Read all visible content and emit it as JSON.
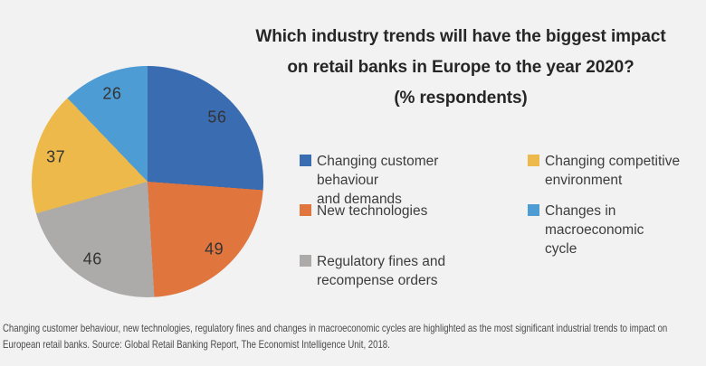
{
  "background_color": "#f2f2f2",
  "title": {
    "line1": "Which industry trends will have the biggest impact",
    "line2": "on retail banks in Europe to the year 2020?",
    "line3": "(% respondents)"
  },
  "chart_data": {
    "type": "pie",
    "title": "Which industry trends will have the biggest impact on retail banks in Europe to the year 2020? (% respondents)",
    "value_unit": "% respondents",
    "start_angle_deg": 0,
    "direction": "clockwise",
    "slices": [
      {
        "label": "Changing customer behaviour and demands",
        "value": 56,
        "color": "#3a6cb1"
      },
      {
        "label": "New technologies",
        "value": 49,
        "color": "#e0763e"
      },
      {
        "label": "Regulatory fines and recompense orders",
        "value": 46,
        "color": "#adaaaa"
      },
      {
        "label": "Changing competitive environment",
        "value": 37,
        "color": "#ecb94a"
      },
      {
        "label": "Changes in macroeconomic cycle",
        "value": 26,
        "color": "#4d9cd3"
      }
    ]
  },
  "legend": {
    "columns": [
      {
        "items": [
          {
            "lines": [
              "Changing customer behaviour",
              "and demands"
            ],
            "color": "#3a6cb1"
          },
          {
            "lines": [
              "New technologies"
            ],
            "color": "#e0763e"
          },
          {
            "lines": [
              "Regulatory fines and",
              "recompense orders"
            ],
            "color": "#adaaaa"
          }
        ]
      },
      {
        "items": [
          {
            "lines": [
              "Changing competitive",
              "environment"
            ],
            "color": "#ecb94a"
          },
          {
            "lines": [
              "Changes in",
              "macroeconomic",
              "cycle"
            ],
            "color": "#4d9cd3"
          }
        ]
      }
    ]
  },
  "caption": {
    "line1": "Changing customer behaviour, new technologies, regulatory fines and changes in macroeconomic cycles are highlighted as the most significant industrial trends to impact on",
    "line2": "European retail banks.  Source: Global Retail Banking Report, The Economist Intelligence Unit, 2018."
  }
}
